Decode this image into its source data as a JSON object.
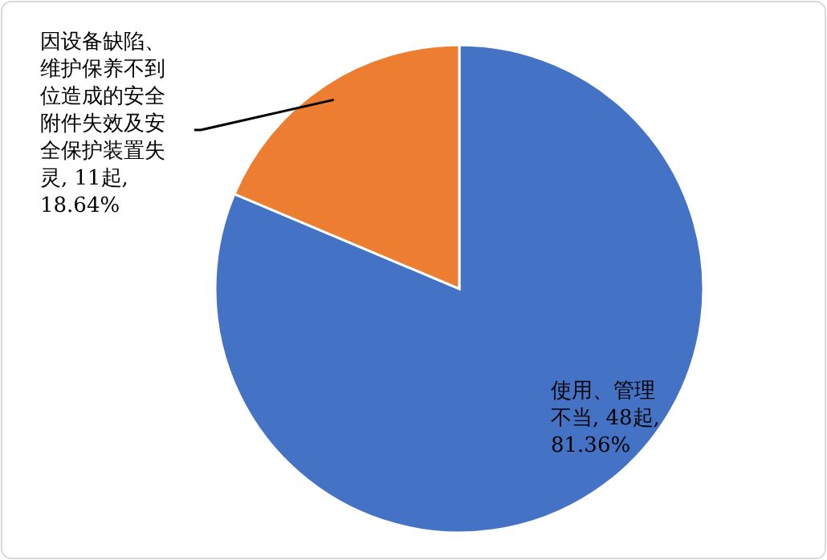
{
  "chart_data": {
    "type": "pie",
    "categories": [
      "使用、管理不当",
      "因设备缺陷、维护保养不到位造成的安全附件失效及安全保护装置失灵"
    ],
    "values": [
      48,
      11
    ],
    "colors": [
      "#4472c4",
      "#ed7d31"
    ],
    "value_labels": [
      "48起, 81.36%",
      "11起, 18.64%"
    ]
  }
}
